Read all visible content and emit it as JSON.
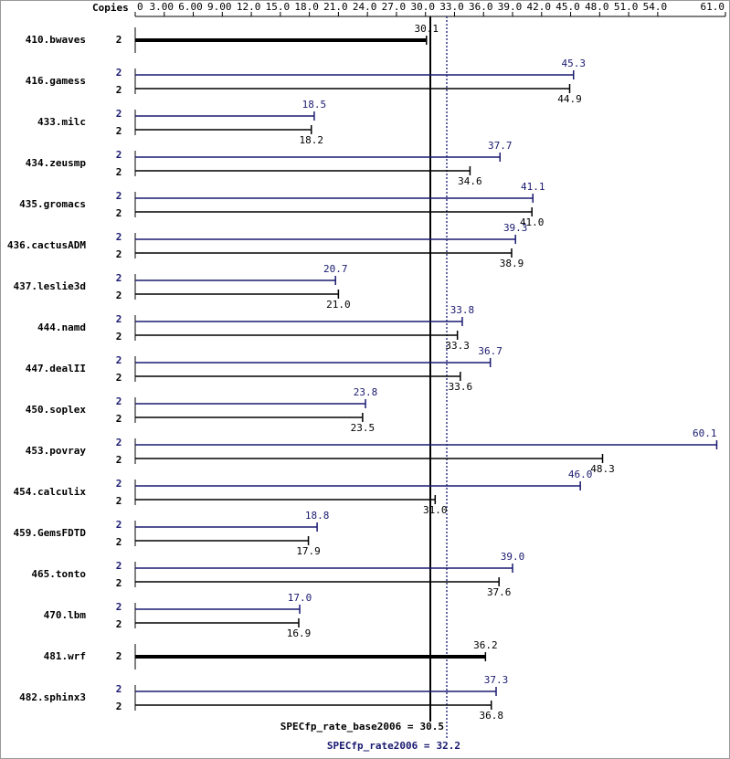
{
  "chart_data": {
    "type": "bar",
    "orientation": "horizontal",
    "copies_header": "Copies",
    "categories": [
      "410.bwaves",
      "416.gamess",
      "433.milc",
      "434.zeusmp",
      "435.gromacs",
      "436.cactusADM",
      "437.leslie3d",
      "444.namd",
      "447.dealII",
      "450.soplex",
      "453.povray",
      "454.calculix",
      "459.GemsFDTD",
      "465.tonto",
      "470.lbm",
      "481.wrf",
      "482.sphinx3"
    ],
    "xlim": [
      0,
      61
    ],
    "xticks": [
      0,
      {
        "value": 3,
        "label": "3.00"
      },
      {
        "value": 6,
        "label": "6.00"
      },
      {
        "value": 9,
        "label": "9.00"
      },
      {
        "value": 12,
        "label": "12.0"
      },
      {
        "value": 15,
        "label": "15.0"
      },
      {
        "value": 18,
        "label": "18.0"
      },
      {
        "value": 21,
        "label": "21.0"
      },
      {
        "value": 24,
        "label": "24.0"
      },
      {
        "value": 27,
        "label": "27.0"
      },
      {
        "value": 30,
        "label": "30.0"
      },
      {
        "value": 33,
        "label": "33.0"
      },
      {
        "value": 36,
        "label": "36.0"
      },
      {
        "value": 39,
        "label": "39.0"
      },
      {
        "value": 42,
        "label": "42.0"
      },
      {
        "value": 45,
        "label": "45.0"
      },
      {
        "value": 48,
        "label": "48.0"
      },
      {
        "value": 51,
        "label": "51.0"
      },
      {
        "value": 54,
        "label": "54.0"
      },
      {
        "value": 61,
        "label": "61.0"
      }
    ],
    "series": [
      {
        "color": "#000000",
        "copies": [
          2,
          2,
          2,
          2,
          2,
          2,
          2,
          2,
          2,
          2,
          2,
          2,
          2,
          2,
          2,
          2,
          2
        ],
        "values": [
          30.1,
          44.9,
          18.2,
          34.6,
          41.0,
          38.9,
          21.0,
          33.3,
          33.6,
          23.5,
          48.3,
          31.0,
          17.9,
          37.6,
          16.9,
          36.2,
          36.8
        ],
        "value_labels": [
          "30.1",
          "44.9",
          "18.2",
          "34.6",
          "41.0",
          "38.9",
          "21.0",
          "33.3",
          "33.6",
          "23.5",
          "48.3",
          "31.0",
          "17.9",
          "37.6",
          "16.9",
          "36.2",
          "36.8"
        ]
      },
      {
        "color": "#191970",
        "copies": [
          null,
          2,
          2,
          2,
          2,
          2,
          2,
          2,
          2,
          2,
          2,
          2,
          2,
          2,
          2,
          null,
          2
        ],
        "values": [
          null,
          45.3,
          18.5,
          37.7,
          41.1,
          39.3,
          20.7,
          33.8,
          36.7,
          23.8,
          60.1,
          46.0,
          18.8,
          39.0,
          17.0,
          null,
          37.3
        ],
        "value_labels": [
          null,
          "45.3",
          "18.5",
          "37.7",
          "41.1",
          "39.3",
          "20.7",
          "33.8",
          "36.7",
          "23.8",
          "60.1",
          "46.0",
          "18.8",
          "39.0",
          "17.0",
          null,
          "37.3"
        ]
      }
    ],
    "reference_lines": [
      {
        "label": "SPECfp_rate_base2006 =",
        "value": 30.5,
        "color": "#000000",
        "style": "solid"
      },
      {
        "label": "SPECfp_rate2006 =",
        "value": 32.2,
        "color": "#191970",
        "style": "dotted"
      }
    ]
  }
}
